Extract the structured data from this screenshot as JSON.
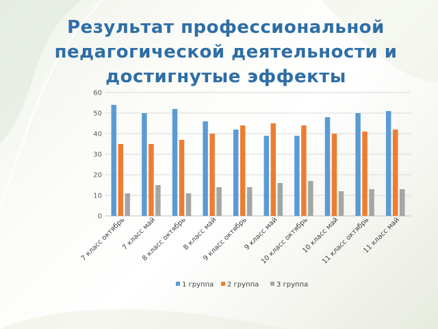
{
  "slide": {
    "title": "Результат профессиональной педагогической деятельности и достигнутые эффекты"
  },
  "chart_data": {
    "type": "bar",
    "categories": [
      "7 класс октябрь",
      "7 класс май",
      "8 класс октябрь",
      "8 класс май",
      "9 класс октябрь",
      "9 класс май",
      "10 класс октябрь",
      "10 класс май",
      "11 класс октябрь",
      "11 класс май"
    ],
    "series": [
      {
        "name": "1 группа",
        "color": "#5b9bd5",
        "values": [
          54,
          50,
          52,
          46,
          42,
          39,
          39,
          48,
          50,
          51
        ]
      },
      {
        "name": "2 группа",
        "color": "#ed7d31",
        "values": [
          35,
          35,
          37,
          40,
          44,
          45,
          44,
          40,
          41,
          42
        ]
      },
      {
        "name": "3 группа",
        "color": "#a5a5a5",
        "values": [
          11,
          15,
          11,
          14,
          14,
          16,
          17,
          12,
          13,
          13
        ]
      }
    ],
    "yticks": [
      0,
      10,
      20,
      30,
      40,
      50,
      60
    ],
    "ylim": [
      0,
      60
    ],
    "grid": true,
    "legend": "bottom"
  }
}
